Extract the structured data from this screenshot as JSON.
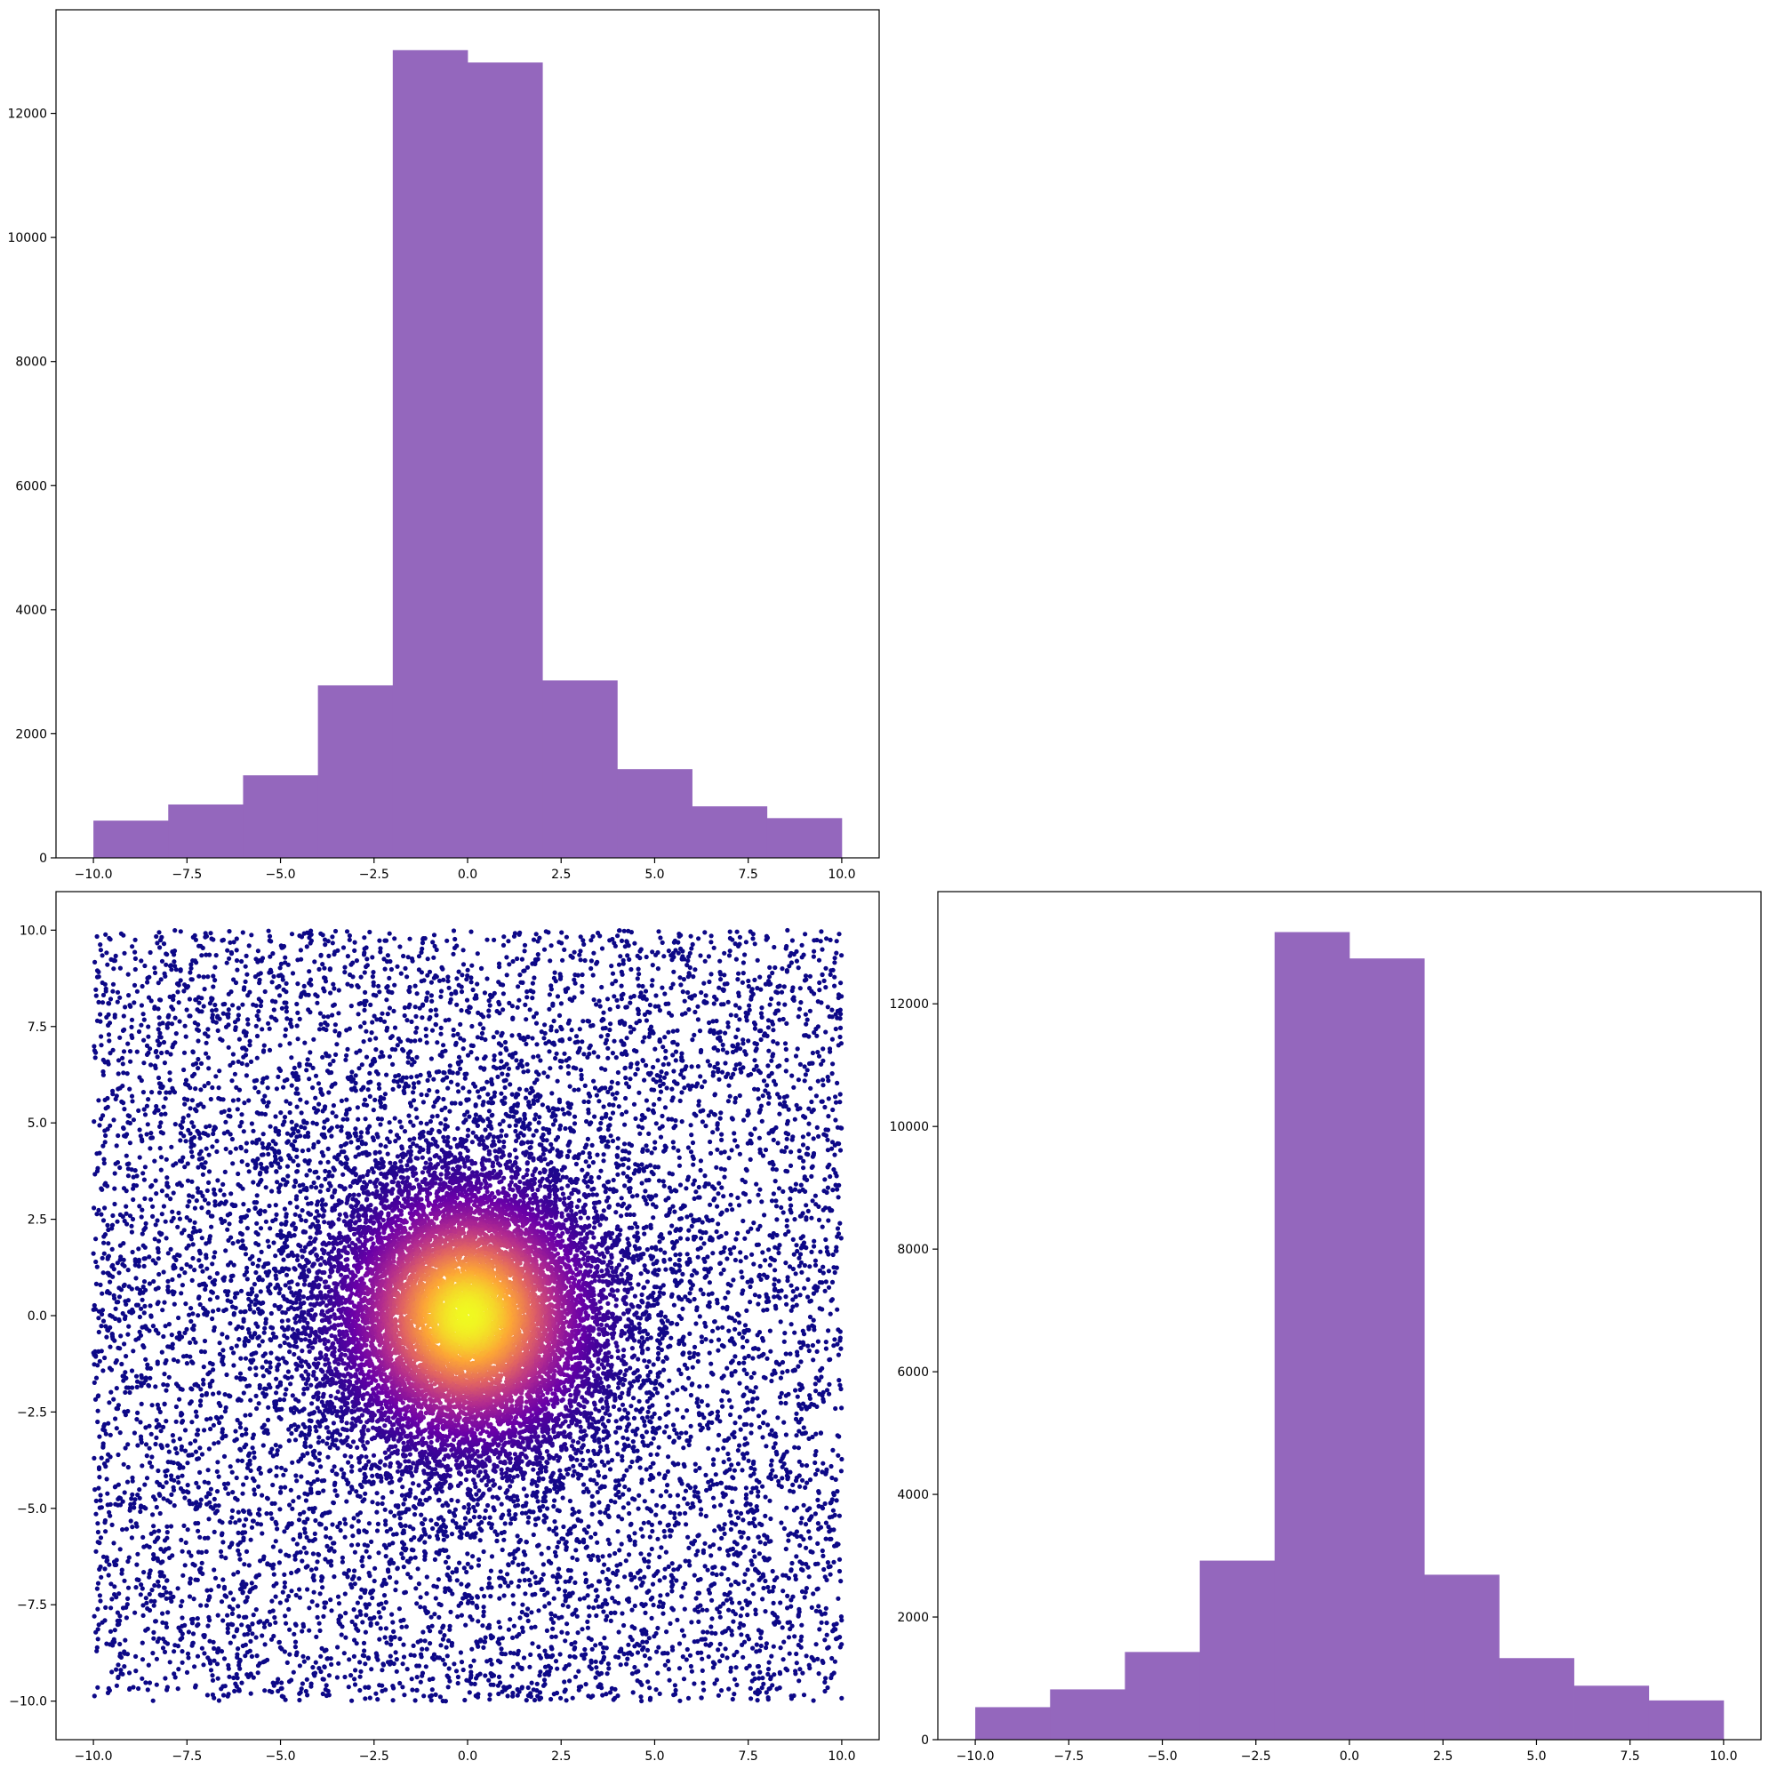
{
  "chart_data": [
    {
      "type": "bar",
      "panel": "top-left histogram",
      "bin_edges": [
        -10,
        -8,
        -6,
        -4,
        -2,
        0,
        2,
        4,
        6,
        8,
        10
      ],
      "values": [
        600,
        860,
        1330,
        2780,
        13020,
        12820,
        2860,
        1430,
        830,
        640
      ],
      "xlim": [
        -11,
        11
      ],
      "ylim": [
        0,
        13670
      ],
      "xticks": [
        -10,
        -7.5,
        -5,
        -2.5,
        0,
        2.5,
        5,
        7.5,
        10
      ],
      "xtick_labels": [
        "−10.0",
        "−7.5",
        "−5.0",
        "−2.5",
        "0.0",
        "2.5",
        "5.0",
        "7.5",
        "10.0"
      ],
      "yticks": [
        0,
        2000,
        4000,
        6000,
        8000,
        10000,
        12000
      ],
      "ytick_labels": [
        "0",
        "2000",
        "4000",
        "6000",
        "8000",
        "10000",
        "12000"
      ],
      "color": "#9467bd",
      "grid": false
    },
    {
      "type": "scatter",
      "panel": "bottom-left scatter",
      "description_of_points": "about 20000 points uniformly spread over [-10,10]x[-10,10] with extra density near the origin; color encodes radial density",
      "x_range": [
        -10,
        10
      ],
      "y_range": [
        -10,
        10
      ],
      "point_count": 20000,
      "colormap": [
        "#0d0887",
        "#6a00a8",
        "#b12a90",
        "#e16462",
        "#fca636",
        "#f0f921"
      ],
      "xlim": [
        -11,
        11
      ],
      "ylim": [
        -11,
        11
      ],
      "xticks": [
        -10,
        -7.5,
        -5,
        -2.5,
        0,
        2.5,
        5,
        7.5,
        10
      ],
      "xtick_labels": [
        "−10.0",
        "−7.5",
        "−5.0",
        "−2.5",
        "0.0",
        "2.5",
        "5.0",
        "7.5",
        "10.0"
      ],
      "yticks": [
        -10,
        -7.5,
        -5,
        -2.5,
        0,
        2.5,
        5,
        7.5,
        10
      ],
      "ytick_labels": [
        "−10.0",
        "−7.5",
        "−5.0",
        "−2.5",
        "0.0",
        "2.5",
        "5.0",
        "7.5",
        "10.0"
      ],
      "grid": false
    },
    {
      "type": "bar",
      "panel": "bottom-right histogram",
      "bin_edges": [
        -10,
        -8,
        -6,
        -4,
        -2,
        0,
        2,
        4,
        6,
        8,
        10
      ],
      "values": [
        530,
        820,
        1430,
        2920,
        13170,
        12740,
        2690,
        1330,
        880,
        640
      ],
      "xlim": [
        -11,
        11
      ],
      "ylim": [
        0,
        13830
      ],
      "xticks": [
        -10,
        -7.5,
        -5,
        -2.5,
        0,
        2.5,
        5,
        7.5,
        10
      ],
      "xtick_labels": [
        "−10.0",
        "−7.5",
        "−5.0",
        "−2.5",
        "0.0",
        "2.5",
        "5.0",
        "7.5",
        "10.0"
      ],
      "yticks": [
        0,
        2000,
        4000,
        6000,
        8000,
        10000,
        12000
      ],
      "ytick_labels": [
        "0",
        "2000",
        "4000",
        "6000",
        "8000",
        "10000",
        "12000"
      ],
      "color": "#9467bd",
      "grid": false
    }
  ]
}
